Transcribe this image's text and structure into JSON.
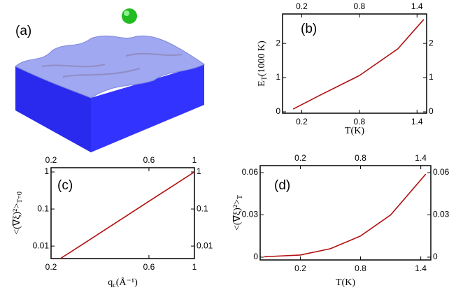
{
  "panel_a": {
    "label": "(a)"
  },
  "chart_data": [
    {
      "type": "line",
      "panel_label": "(b)",
      "y_label": {
        "main": "E",
        "sub": "T",
        "rest": "(1000 K)"
      },
      "x_label": {
        "main": "T(K)"
      },
      "x": [
        0.11,
        0.4,
        0.8,
        1.2,
        1.47
      ],
      "series": [
        {
          "color": "#b01010",
          "values": [
            0.08,
            0.5,
            1.06,
            1.84,
            2.7
          ]
        }
      ],
      "xlim": [
        0,
        1.5
      ],
      "ylim": [
        -0.04,
        2.86
      ],
      "xticks": [
        0.2,
        0.8,
        1.4
      ],
      "yticks": [
        0,
        1,
        2
      ],
      "log_x": false,
      "log_y": false
    },
    {
      "type": "line",
      "panel_label": "(c)",
      "y_label": {
        "main": "<(∇ξ)²>",
        "sub": "T=0",
        "rest": ""
      },
      "x_label": {
        "main": "q",
        "sub": "c",
        "rest": "(Å⁻¹)"
      },
      "x": [
        0.222,
        0.3,
        0.4,
        0.6,
        0.8,
        1
      ],
      "series": [
        {
          "color": "#b01010",
          "values": [
            0.0046,
            0.0134,
            0.0376,
            0.161,
            0.45,
            1
          ]
        }
      ],
      "xlim": [
        0.2,
        1
      ],
      "ylim": [
        0.0046,
        1.3
      ],
      "xticks": [
        0.2,
        0.6,
        1
      ],
      "yticks": [
        0.01,
        0.1,
        1
      ],
      "log_x": true,
      "log_y": true
    },
    {
      "type": "line",
      "panel_label": "(d)",
      "y_label": {
        "main": "<(∇ξ)²>",
        "sub": "T",
        "rest": ""
      },
      "x_label": {
        "main": "T(K)"
      },
      "x": [
        -0.16,
        0.2,
        0.5,
        0.8,
        1.1,
        1.45
      ],
      "series": [
        {
          "color": "#b01010",
          "values": [
            0.0003,
            0.0015,
            0.006,
            0.015,
            0.03,
            0.059
          ]
        }
      ],
      "xlim": [
        -0.2,
        1.5
      ],
      "ylim": [
        -0.002,
        0.065
      ],
      "xticks": [
        0.2,
        0.8,
        1.4
      ],
      "yticks": [
        0,
        0.03,
        0.06
      ],
      "log_x": false,
      "log_y": false
    }
  ]
}
